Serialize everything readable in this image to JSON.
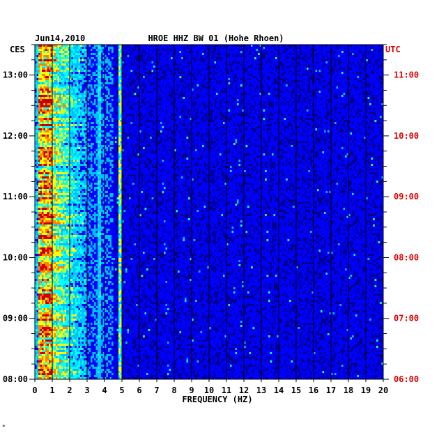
{
  "header": {
    "date": "Jun14,2010",
    "station": "HROE HHZ BW 01 (Hohe Rhoen)",
    "left_zone": "CES",
    "right_zone": "UTC"
  },
  "footer_mark": "*",
  "chart_data": {
    "type": "heatmap",
    "title": "HROE HHZ BW 01 (Hohe Rhoen)",
    "date": "Jun14,2010",
    "xlabel": "FREQUENCY (HZ)",
    "xlim": [
      0,
      20
    ],
    "x_ticks": [
      "0",
      "1",
      "2",
      "3",
      "4",
      "5",
      "6",
      "7",
      "8",
      "9",
      "10",
      "11",
      "12",
      "13",
      "14",
      "15",
      "16",
      "17",
      "18",
      "19",
      "20"
    ],
    "left_axis": {
      "zone": "CES",
      "ticks": [
        "13:00",
        "12:00",
        "11:00",
        "10:00",
        "09:00",
        "08:00"
      ],
      "tick_hours": [
        13,
        12,
        11,
        10,
        9,
        8
      ]
    },
    "right_axis": {
      "zone": "UTC",
      "ticks": [
        "11:00",
        "10:00",
        "09:00",
        "08:00",
        "07:00",
        "06:00"
      ],
      "tick_hours": [
        11,
        10,
        9,
        8,
        7,
        6
      ]
    },
    "time_range_ces": [
      8.0,
      13.5
    ],
    "colormap": [
      "#00008b",
      "#0000ff",
      "#00bfff",
      "#00ffff",
      "#ffff00",
      "#ff8000",
      "#cc0000"
    ],
    "features": [
      {
        "label": "strong low-frequency energy",
        "freq_hz": [
          0.3,
          1.0
        ]
      },
      {
        "label": "persistent spectral line",
        "freq_hz": 4.9
      },
      {
        "label": "persistent spectral line",
        "freq_hz": 3.7
      }
    ]
  }
}
